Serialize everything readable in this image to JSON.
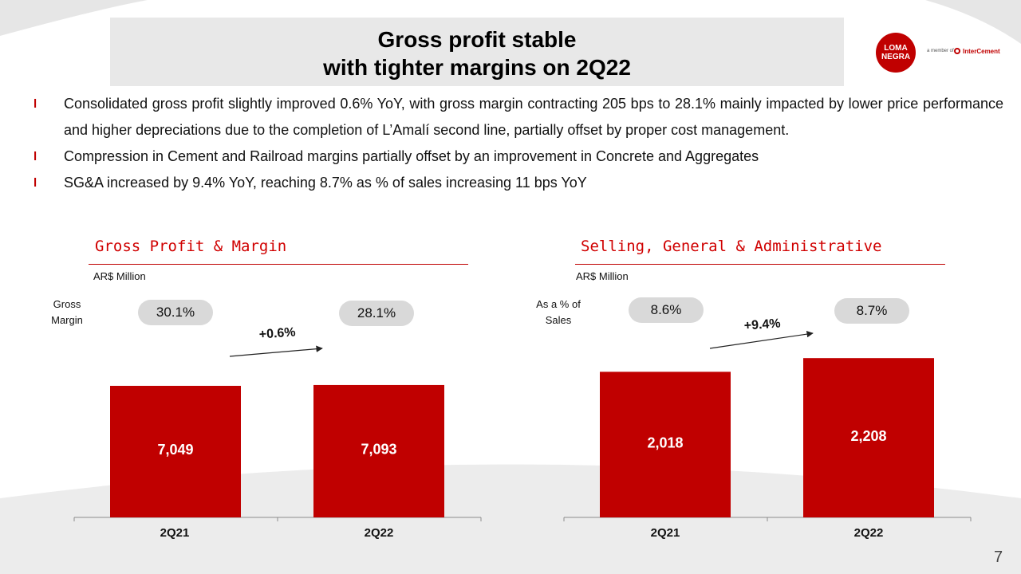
{
  "slide": {
    "title_line1": "Gross profit stable",
    "title_line2": "with tighter margins on 2Q22",
    "page_number": "7"
  },
  "logo": {
    "brand_line1": "LOMA",
    "brand_line2": "NEGRA",
    "member_text": "a member of",
    "parent_brand": "InterCement"
  },
  "bullets": [
    {
      "marker": "l",
      "text": "Consolidated gross profit slightly improved 0.6% YoY,  with gross margin contracting 205 bps to 28.1% mainly impacted by lower price performance and higher depreciations due to the completion of L’Amalí second line, partially offset by proper cost management."
    },
    {
      "marker": "l",
      "text": "Compression in Cement and Railroad margins partially offset by an improvement in Concrete and Aggregates"
    },
    {
      "marker": "l",
      "text": "SG&A increased by 9.4% YoY, reaching 8.7% as % of sales increasing 11 bps YoY"
    }
  ],
  "colors": {
    "accent": "#c00000",
    "pill": "#d9d9d9",
    "band": "#e8e8e8"
  },
  "chart_data": [
    {
      "type": "bar",
      "title": "Gross Profit & Margin",
      "unit": "AR$ Million",
      "side_label_line1": "Gross",
      "side_label_line2": "Margin",
      "categories": [
        "2Q21",
        "2Q22"
      ],
      "values": [
        7049,
        7093
      ],
      "value_labels": [
        "7,049",
        "7,093"
      ],
      "ratio_labels": [
        "30.1%",
        "28.1%"
      ],
      "growth_label": "+0.6%",
      "ylim": [
        0,
        8500
      ]
    },
    {
      "type": "bar",
      "title": "Selling, General & Administrative",
      "unit": "AR$ Million",
      "side_label_line1": "As a % of",
      "side_label_line2": "Sales",
      "categories": [
        "2Q21",
        "2Q22"
      ],
      "values": [
        2018,
        2208
      ],
      "value_labels": [
        "2,018",
        "2,208"
      ],
      "ratio_labels": [
        "8.6%",
        "8.7%"
      ],
      "growth_label": "+9.4%",
      "ylim": [
        0,
        2420
      ]
    }
  ]
}
